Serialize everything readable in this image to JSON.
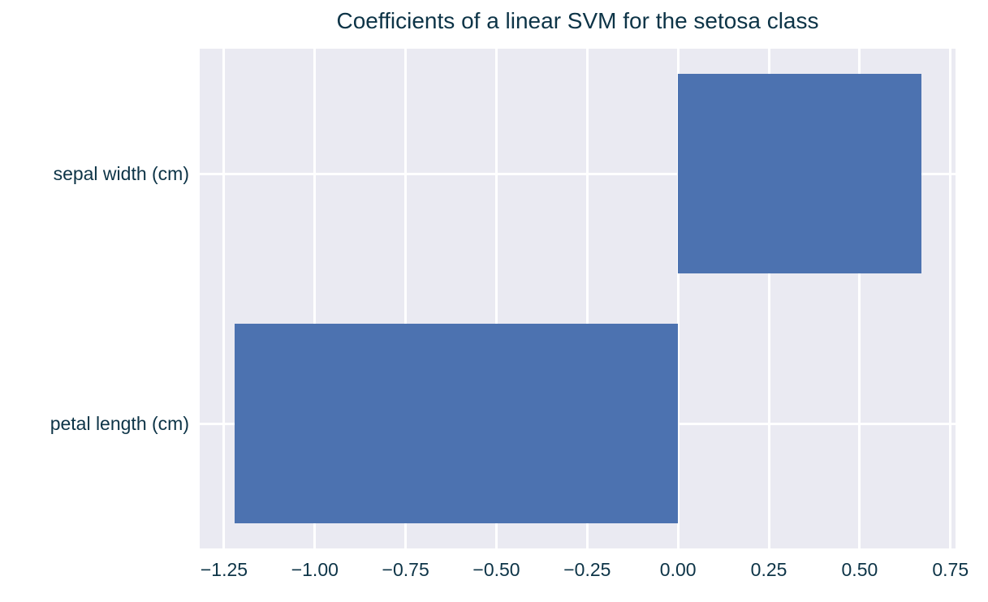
{
  "chart_data": {
    "type": "bar",
    "orientation": "horizontal",
    "title": "Coefficients of a linear SVM for the setosa class",
    "categories": [
      "sepal width (cm)",
      "petal length (cm)"
    ],
    "values": [
      0.67,
      -1.22
    ],
    "xlabel": "",
    "ylabel": "",
    "xlim": [
      -1.317,
      0.764
    ],
    "xticks": [
      -1.25,
      -1.0,
      -0.75,
      -0.5,
      -0.25,
      0.0,
      0.25,
      0.5,
      0.75
    ],
    "xtick_labels": [
      "−1.25",
      "−1.00",
      "−0.75",
      "−0.50",
      "−0.25",
      "0.00",
      "0.25",
      "0.50",
      "0.75"
    ],
    "grid": true,
    "legend": false,
    "bar_height_fraction": 0.8,
    "colors": {
      "bar": "#4C72B0",
      "plot_background": "#EAEAF2",
      "gridline": "#FFFFFF",
      "text": "#0D3447",
      "figure_background": "#FFFFFF"
    }
  }
}
